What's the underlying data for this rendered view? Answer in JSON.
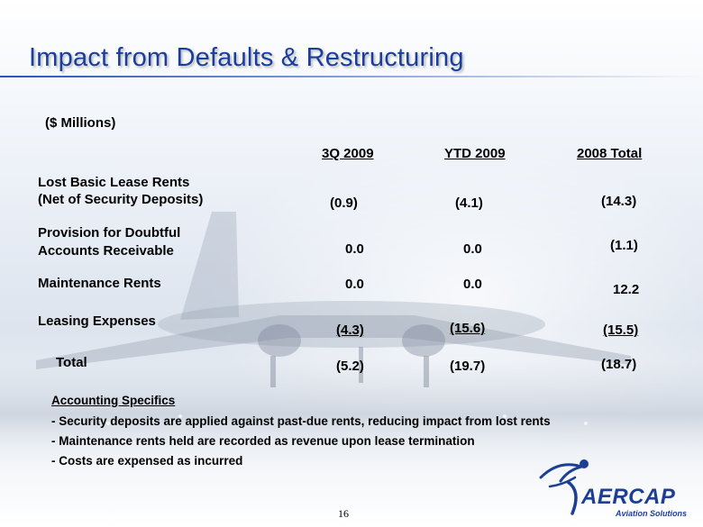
{
  "slide": {
    "title": "Impact from Defaults & Restructuring",
    "units": "($ Millions)",
    "page_number": "16"
  },
  "table": {
    "columns": [
      "3Q 2009",
      "YTD 2009",
      "2008 Total"
    ],
    "rows": [
      {
        "label_lines": [
          "Lost Basic Lease Rents",
          "(Net of Security Deposits)"
        ],
        "values": [
          "(0.9)",
          "(4.1)",
          "(14.3)"
        ]
      },
      {
        "label_lines": [
          "Provision for Doubtful",
          "Accounts Receivable"
        ],
        "values": [
          "0.0",
          "0.0",
          "(1.1)"
        ]
      },
      {
        "label_lines": [
          "Maintenance Rents"
        ],
        "values": [
          "0.0",
          "0.0",
          "12.2"
        ]
      },
      {
        "label_lines": [
          "Leasing Expenses"
        ],
        "values": [
          "(4.3)",
          "(15.6)",
          "(15.5)"
        ]
      },
      {
        "label_lines": [
          "Total"
        ],
        "values": [
          "(5.2)",
          "(19.7)",
          "(18.7)"
        ]
      }
    ]
  },
  "notes": {
    "heading": "Accounting Specifics",
    "items": [
      "- Security deposits are applied against past-due rents, reducing impact from lost rents",
      "- Maintenance rents held are recorded as revenue upon lease termination",
      "- Costs are expensed as incurred"
    ]
  },
  "logo": {
    "name": "AERCAP",
    "tagline": "Aviation Solutions",
    "colors": {
      "primary": "#1c3f95",
      "swoosh": "#1c3f95"
    }
  },
  "colors": {
    "title": "#1a3e9c",
    "text": "#000000"
  }
}
